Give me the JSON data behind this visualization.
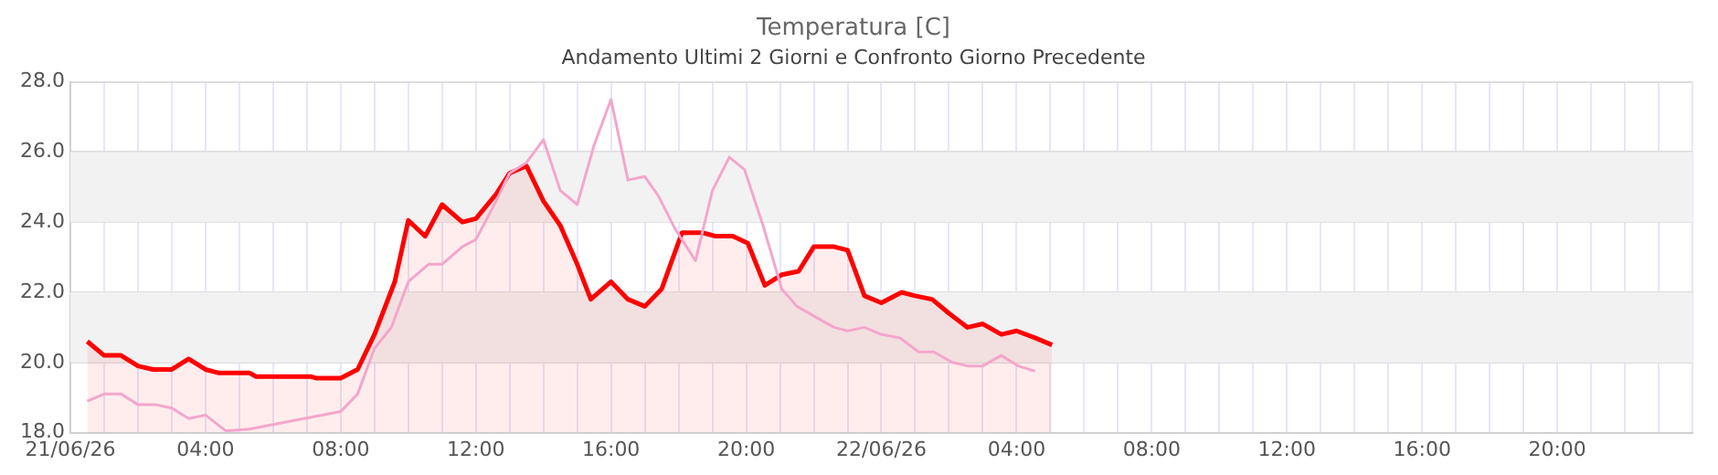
{
  "chart_data": {
    "type": "line",
    "title": "Temperatura [C]",
    "subtitle": "Andamento Ultimi 2 Giorni e Confronto Giorno Precedente",
    "xlim": [
      "--06-21T00:00",
      "--06-23T00:00"
    ],
    "xticks": [
      {
        "value": "--06-21T00:00",
        "label": "21/06/26"
      },
      {
        "value": "--06-21T01:00",
        "label": null
      },
      {
        "value": "--06-21T02:00",
        "label": null
      },
      {
        "value": "--06-21T03:00",
        "label": null
      },
      {
        "value": "--06-21T04:00",
        "label": "04:00"
      },
      {
        "value": "--06-21T05:00",
        "label": null
      },
      {
        "value": "--06-21T06:00",
        "label": null
      },
      {
        "value": "--06-21T07:00",
        "label": null
      },
      {
        "value": "--06-21T08:00",
        "label": "08:00"
      },
      {
        "value": "--06-21T09:00",
        "label": null
      },
      {
        "value": "--06-21T10:00",
        "label": null
      },
      {
        "value": "--06-21T11:00",
        "label": null
      },
      {
        "value": "--06-21T12:00",
        "label": "12:00"
      },
      {
        "value": "--06-21T13:00",
        "label": null
      },
      {
        "value": "--06-21T14:00",
        "label": null
      },
      {
        "value": "--06-21T15:00",
        "label": null
      },
      {
        "value": "--06-21T16:00",
        "label": "16:00"
      },
      {
        "value": "--06-21T17:00",
        "label": null
      },
      {
        "value": "--06-21T18:00",
        "label": null
      },
      {
        "value": "--06-21T19:00",
        "label": null
      },
      {
        "value": "--06-21T20:00",
        "label": "20:00"
      },
      {
        "value": "--06-21T21:00",
        "label": null
      },
      {
        "value": "--06-21T22:00",
        "label": null
      },
      {
        "value": "--06-21T23:00",
        "label": null
      },
      {
        "value": "--06-22T00:00",
        "label": "22/06/26"
      },
      {
        "value": "--06-22T01:00",
        "label": null
      },
      {
        "value": "--06-22T02:00",
        "label": null
      },
      {
        "value": "--06-22T03:00",
        "label": null
      },
      {
        "value": "--06-22T04:00",
        "label": "04:00"
      },
      {
        "value": "--06-22T05:00",
        "label": null
      },
      {
        "value": "--06-22T06:00",
        "label": null
      },
      {
        "value": "--06-22T07:00",
        "label": null
      },
      {
        "value": "--06-22T08:00",
        "label": "08:00"
      },
      {
        "value": "--06-22T09:00",
        "label": null
      },
      {
        "value": "--06-22T10:00",
        "label": null
      },
      {
        "value": "--06-22T11:00",
        "label": null
      },
      {
        "value": "--06-22T12:00",
        "label": "12:00"
      },
      {
        "value": "--06-22T13:00",
        "label": null
      },
      {
        "value": "--06-22T14:00",
        "label": null
      },
      {
        "value": "--06-22T15:00",
        "label": null
      },
      {
        "value": "--06-22T16:00",
        "label": "16:00"
      },
      {
        "value": "--06-22T17:00",
        "label": null
      },
      {
        "value": "--06-22T18:00",
        "label": null
      },
      {
        "value": "--06-22T19:00",
        "label": null
      },
      {
        "value": "--06-22T20:00",
        "label": "20:00"
      },
      {
        "value": "--06-22T21:00",
        "label": null
      },
      {
        "value": "--06-22T22:00",
        "label": null
      },
      {
        "value": "--06-22T23:00",
        "label": null
      },
      {
        "value": "--06-23T00:00",
        "label": null
      }
    ],
    "ylim": [
      18,
      28
    ],
    "yticks": [
      {
        "value": 18,
        "label": "18.0"
      },
      {
        "value": 20,
        "label": "20.0"
      },
      {
        "value": 22,
        "label": "22.0"
      },
      {
        "value": 24,
        "label": "24.0"
      },
      {
        "value": 26,
        "label": "26.0"
      },
      {
        "value": 28,
        "label": "28.0"
      }
    ],
    "grid": true,
    "marker": "none",
    "line_style": "solid",
    "bands": [
      {
        "axis": "y",
        "from": 20,
        "to": 22,
        "color": "#f2f2f2"
      },
      {
        "axis": "y",
        "from": 24,
        "to": 26,
        "color": "#f2f2f2"
      }
    ],
    "series": [
      {
        "color": "#f4a6cc",
        "x": [
          "--06-21T00:30",
          "--06-21T01:00",
          "--06-21T01:30",
          "--06-21T02:00",
          "--06-21T02:30",
          "--06-21T03:00",
          "--06-21T03:30",
          "--06-21T04:00",
          "--06-21T04:36",
          "--06-21T05:18",
          "--06-21T08:00",
          "--06-21T08:30",
          "--06-21T09:00",
          "--06-21T09:30",
          "--06-21T10:00",
          "--06-21T10:36",
          "--06-21T11:00",
          "--06-21T11:36",
          "--06-21T12:00",
          "--06-21T12:36",
          "--06-21T13:00",
          "--06-21T13:30",
          "--06-21T14:00",
          "--06-21T14:30",
          "--06-21T15:00",
          "--06-21T15:30",
          "--06-21T16:00",
          "--06-21T16:30",
          "--06-21T17:00",
          "--06-21T17:24",
          "--06-21T17:54",
          "--06-21T18:30",
          "--06-21T19:00",
          "--06-21T19:30",
          "--06-21T19:57",
          "--06-21T20:30",
          "--06-21T21:03",
          "--06-21T21:30",
          "--06-21T22:03",
          "--06-21T22:36",
          "--06-21T23:00",
          "--06-21T23:30",
          "--06-22T00:00",
          "--06-22T00:33",
          "--06-22T01:06",
          "--06-22T01:33",
          "--06-22T02:06",
          "--06-22T02:33",
          "--06-22T03:00",
          "--06-22T03:33",
          "--06-22T04:03",
          "--06-22T04:33"
        ],
        "values": [
          18.9,
          19.1,
          19.1,
          18.8,
          18.8,
          18.7,
          18.4,
          18.5,
          18.05,
          18.1,
          18.6,
          19.1,
          20.4,
          21,
          22.3,
          22.8,
          22.8,
          23.3,
          23.5,
          24.6,
          25.4,
          25.7,
          26.35,
          24.9,
          24.5,
          26.2,
          27.5,
          25.2,
          25.3,
          24.75,
          23.8,
          22.9,
          24.9,
          25.85,
          25.5,
          23.9,
          22.1,
          21.6,
          21.3,
          21,
          20.9,
          21,
          20.8,
          20.7,
          20.3,
          20.3,
          20,
          19.9,
          19.9,
          20.2,
          19.9,
          19.75
        ]
      },
      {
        "type": "area",
        "color": "#ff0000",
        "x": [
          "--06-21T00:30",
          "--06-21T01:00",
          "--06-21T01:30",
          "--06-21T02:00",
          "--06-21T02:27",
          "--06-21T03:00",
          "--06-21T03:30",
          "--06-21T04:00",
          "--06-21T04:24",
          "--06-21T05:18",
          "--06-21T05:30",
          "--06-21T07:06",
          "--06-21T07:18",
          "--06-21T08:00",
          "--06-21T08:30",
          "--06-21T09:00",
          "--06-21T09:36",
          "--06-21T10:00",
          "--06-21T10:30",
          "--06-21T11:00",
          "--06-21T11:36",
          "--06-21T12:00",
          "--06-21T12:36",
          "--06-21T13:00",
          "--06-21T13:30",
          "--06-21T14:00",
          "--06-21T14:30",
          "--06-21T15:00",
          "--06-21T15:24",
          "--06-21T16:00",
          "--06-21T16:30",
          "--06-21T17:00",
          "--06-21T17:30",
          "--06-21T18:06",
          "--06-21T18:42",
          "--06-21T19:06",
          "--06-21T19:36",
          "--06-21T20:03",
          "--06-21T20:33",
          "--06-21T21:03",
          "--06-21T21:33",
          "--06-21T22:00",
          "--06-21T22:36",
          "--06-21T23:00",
          "--06-21T23:30",
          "--06-22T00:00",
          "--06-22T00:36",
          "--06-22T01:00",
          "--06-22T01:30",
          "--06-22T02:00",
          "--06-22T02:33",
          "--06-22T03:00",
          "--06-22T03:33",
          "--06-22T04:00",
          "--06-22T04:33",
          "--06-22T05:03"
        ],
        "values": [
          20.6,
          20.2,
          20.2,
          19.9,
          19.8,
          19.8,
          20.1,
          19.8,
          19.7,
          19.7,
          19.6,
          19.6,
          19.55,
          19.55,
          19.8,
          20.8,
          22.3,
          24.05,
          23.6,
          24.5,
          24,
          24.1,
          24.8,
          25.4,
          25.6,
          24.6,
          23.9,
          22.8,
          21.8,
          22.3,
          21.8,
          21.6,
          22.1,
          23.7,
          23.7,
          23.6,
          23.6,
          23.4,
          22.2,
          22.5,
          22.6,
          23.3,
          23.3,
          23.2,
          21.9,
          21.7,
          22,
          21.9,
          21.8,
          21.4,
          21,
          21.1,
          20.8,
          20.9,
          20.7,
          20.5
        ]
      }
    ]
  }
}
